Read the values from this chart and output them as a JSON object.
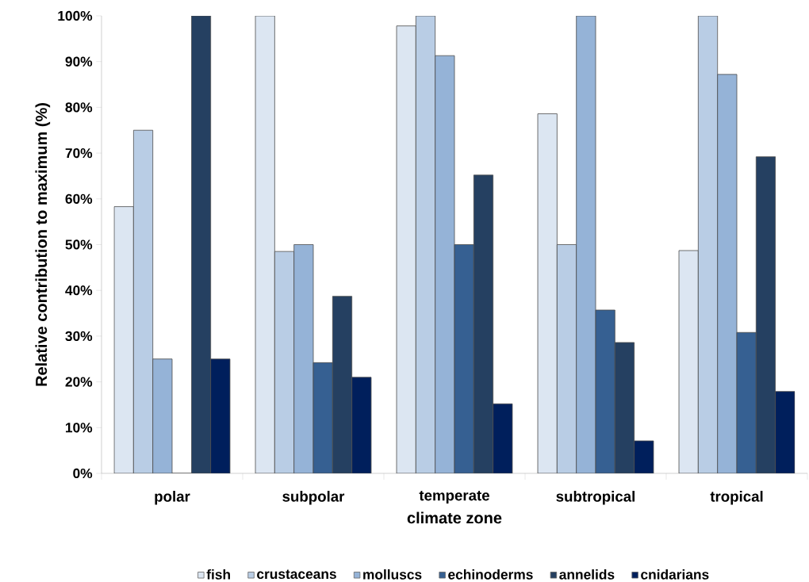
{
  "chart_data": {
    "type": "bar",
    "xlabel": "climate zone",
    "ylabel": "Relative contribution to maximum (%)",
    "categories": [
      "polar",
      "subpolar",
      "temperate",
      "subtropical",
      "tropical"
    ],
    "series": [
      {
        "name": "fish",
        "color": "#dce6f2",
        "values": [
          58.3,
          100,
          97.8,
          78.6,
          48.7
        ]
      },
      {
        "name": "crustaceans",
        "color": "#b9cde5",
        "values": [
          75,
          48.5,
          100,
          50,
          100
        ]
      },
      {
        "name": "molluscs",
        "color": "#95b3d7",
        "values": [
          25,
          50,
          91.3,
          100,
          87.2
        ]
      },
      {
        "name": "echinoderms",
        "color": "#366092",
        "values": [
          0,
          24.2,
          50,
          35.7,
          30.8
        ]
      },
      {
        "name": "annelids",
        "color": "#254061",
        "values": [
          100,
          38.7,
          65.2,
          28.6,
          69.2
        ]
      },
      {
        "name": "cnidarians",
        "color": "#001f5c",
        "values": [
          25,
          21,
          15.2,
          7.1,
          17.9
        ]
      }
    ],
    "ylim": [
      0,
      100
    ],
    "yticks": [
      {
        "value": 0,
        "label": "0%"
      },
      {
        "value": 10,
        "label": "10%"
      },
      {
        "value": 20,
        "label": "20%"
      },
      {
        "value": 30,
        "label": "30%"
      },
      {
        "value": 40,
        "label": "40%"
      },
      {
        "value": 50,
        "label": "50%"
      },
      {
        "value": 60,
        "label": "60%"
      },
      {
        "value": 70,
        "label": "70%"
      },
      {
        "value": 80,
        "label": "80%"
      },
      {
        "value": 90,
        "label": "90%"
      },
      {
        "value": 100,
        "label": "100%"
      }
    ],
    "legend": "bottom"
  }
}
